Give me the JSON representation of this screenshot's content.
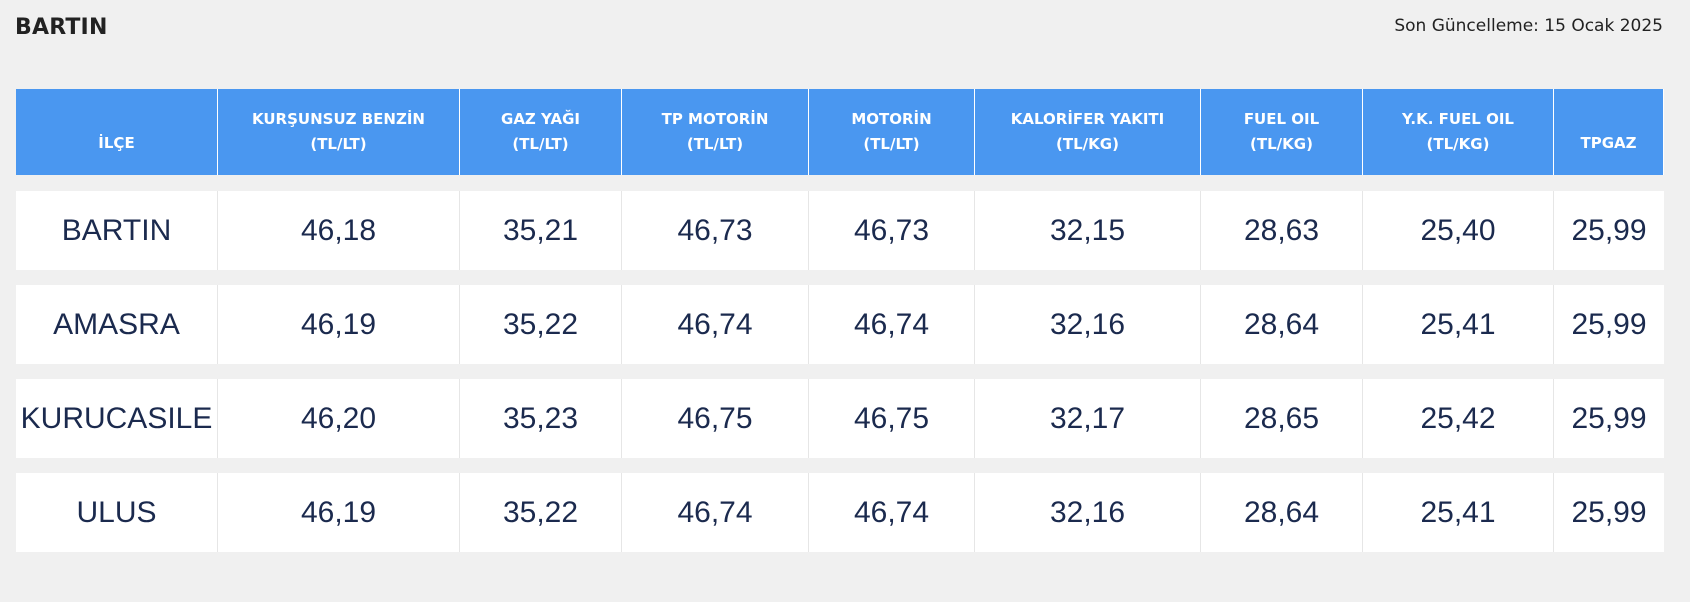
{
  "page": {
    "title": "BARTIN",
    "last_updated": "Son Güncelleme: 15 Ocak 2025"
  },
  "table": {
    "headers": [
      {
        "name": "İLÇE",
        "unit": ""
      },
      {
        "name": "KURŞUNSUZ BENZİN",
        "unit": "(TL/LT)"
      },
      {
        "name": "GAZ YAĞI",
        "unit": "(TL/LT)"
      },
      {
        "name": "TP MOTORİN",
        "unit": "(TL/LT)"
      },
      {
        "name": "MOTORİN",
        "unit": "(TL/LT)"
      },
      {
        "name": "KALORİFER YAKITI",
        "unit": "(TL/KG)"
      },
      {
        "name": "FUEL OIL",
        "unit": "(TL/KG)"
      },
      {
        "name": "Y.K. FUEL OIL",
        "unit": "(TL/KG)"
      },
      {
        "name": "TPGAZ",
        "unit": ""
      }
    ],
    "rows": [
      [
        "BARTIN",
        "46,18",
        "35,21",
        "46,73",
        "46,73",
        "32,15",
        "28,63",
        "25,40",
        "25,99"
      ],
      [
        "AMASRA",
        "46,19",
        "35,22",
        "46,74",
        "46,74",
        "32,16",
        "28,64",
        "25,41",
        "25,99"
      ],
      [
        "KURUCASILE",
        "46,20",
        "35,23",
        "46,75",
        "46,75",
        "32,17",
        "28,65",
        "25,42",
        "25,99"
      ],
      [
        "ULUS",
        "46,19",
        "35,22",
        "46,74",
        "46,74",
        "32,16",
        "28,64",
        "25,41",
        "25,99"
      ]
    ]
  },
  "colors": {
    "header_bg": "#4a97f0",
    "header_text": "#ffffff",
    "cell_text": "#1b2a4e",
    "page_bg": "#f0f0f0"
  }
}
